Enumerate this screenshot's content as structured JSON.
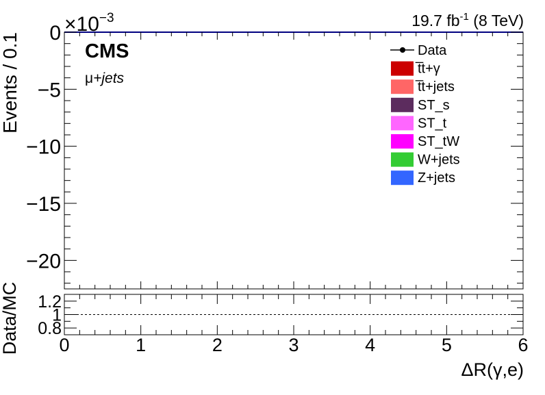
{
  "chart_data": [
    {
      "type": "bar",
      "panel": "main",
      "xlim": [
        0,
        6
      ],
      "ylim": [
        -22.5,
        0
      ],
      "yticks": [
        0,
        -5,
        -10,
        -15,
        -20
      ],
      "ytick_labels": [
        "0",
        "−5",
        "−10",
        "−15",
        "−20"
      ],
      "yaxis_multiplier_base": "×10",
      "yaxis_multiplier_exp": "−3",
      "ylabel": "Events / 0.1",
      "lumi_value": "19.7 fb",
      "lumi_exp": "-1",
      "lumi_energy": " (8 TeV)",
      "cms_label": "CMS",
      "channel_mu": "μ",
      "channel_rest": "+jets",
      "series": [],
      "legend_position": "top-right",
      "legend": [
        {
          "label": "Data",
          "marker": "point-line",
          "color": "#000000"
        },
        {
          "label": "t̅t+γ",
          "color": "#cc0000"
        },
        {
          "label": "t̅t+jets",
          "color": "#ff6666"
        },
        {
          "label": "ST_s",
          "color": "#5c2c5e"
        },
        {
          "label": "ST_t",
          "color": "#ff66ff"
        },
        {
          "label": "ST_tW",
          "color": "#ff00ff"
        },
        {
          "label": "W+jets",
          "color": "#33cc33"
        },
        {
          "label": "Z+jets",
          "color": "#3366ff"
        }
      ]
    },
    {
      "type": "line",
      "panel": "ratio",
      "xlim": [
        0,
        6
      ],
      "ylim": [
        0.7,
        1.3
      ],
      "xticks": [
        0,
        1,
        2,
        3,
        4,
        5,
        6
      ],
      "xtick_labels": [
        "0",
        "1",
        "2",
        "3",
        "4",
        "5",
        "6"
      ],
      "yticks": [
        0.8,
        1,
        1.2
      ],
      "ytick_labels": [
        "0.8",
        "1",
        "1.2"
      ],
      "reference_line": 1,
      "ylabel": "Data/MC",
      "xlabel": "ΔR(γ,e)",
      "series": []
    }
  ]
}
